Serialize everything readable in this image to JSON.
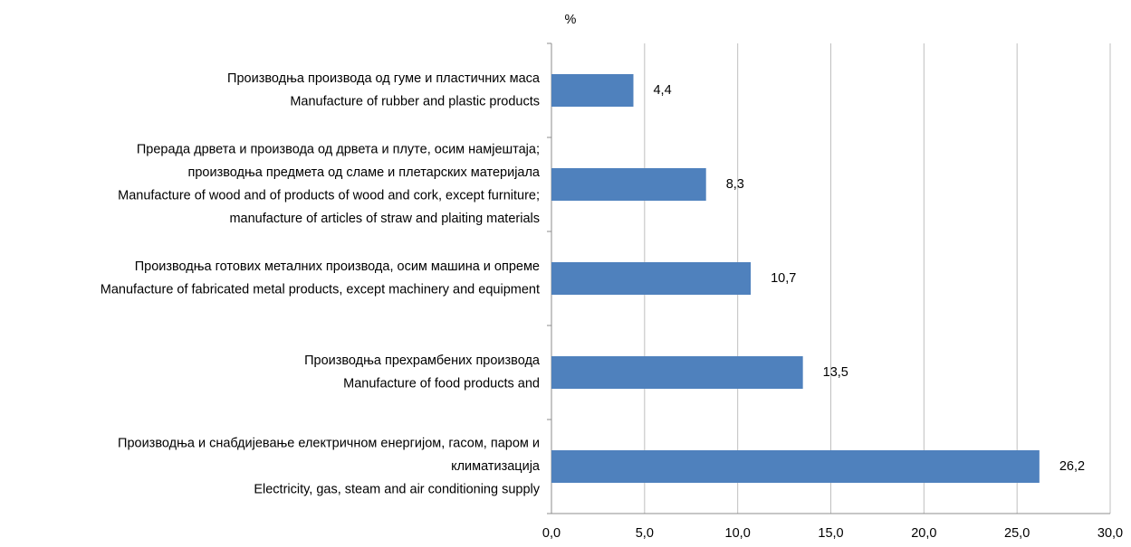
{
  "chart_data": {
    "type": "bar",
    "orientation": "horizontal",
    "y_axis_label": "%",
    "categories": [
      [
        "Производња производа од гуме и пластичних маса",
        "Manufacture of rubber and plastic products"
      ],
      [
        "Прерада дрвета и производа од дрвета и плуте, осим намјештаја;",
        "производња предмета од сламе и плетарских материјала",
        "Manufacture of wood and of products of wood and cork, except furniture;",
        "manufacture of articles of straw and plaiting materials"
      ],
      [
        "Производња готових металних производа, осим машина и опреме",
        "Manufacture of fabricated metal products, except machinery and equipment"
      ],
      [
        "Производња прехрамбених производа",
        "Manufacture of food products and"
      ],
      [
        "Производња и снабдијевање електричном енергијом, гасом, паром и",
        "климатизација",
        "Electricity, gas, steam and air conditioning supply"
      ]
    ],
    "values": [
      4.4,
      8.3,
      10.7,
      13.5,
      26.2
    ],
    "value_labels": [
      "4,4",
      "8,3",
      "10,7",
      "13,5",
      "26,2"
    ],
    "color": "#4f81bd",
    "xlim": [
      0,
      30
    ],
    "xticks": [
      {
        "value": 0,
        "label": "0,0"
      },
      {
        "value": 5,
        "label": "5,0"
      },
      {
        "value": 10,
        "label": "10,0"
      },
      {
        "value": 15,
        "label": "15,0"
      },
      {
        "value": 20,
        "label": "20,0"
      },
      {
        "value": 25,
        "label": "25,0"
      },
      {
        "value": 30,
        "label": "30,0"
      }
    ],
    "grid": true
  }
}
